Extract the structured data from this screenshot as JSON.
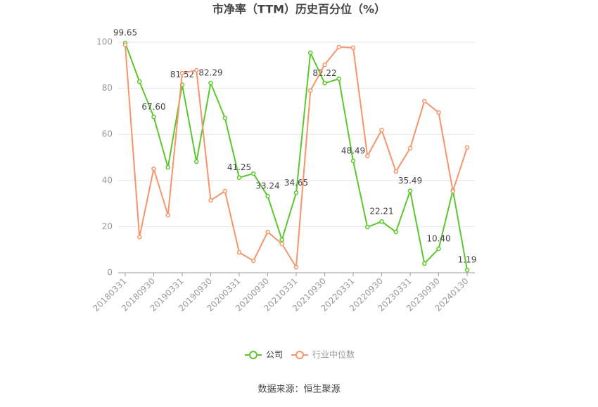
{
  "chart_data": {
    "type": "line",
    "title": "市净率（TTM）历史百分位（%）",
    "source": "数据来源：恒生聚源",
    "categories": [
      "20180331",
      null,
      "20180930",
      null,
      "20190331",
      null,
      "20190930",
      null,
      "20200331",
      null,
      "20200930",
      null,
      "20210331",
      null,
      "20210930",
      null,
      "20220331",
      null,
      "20220930",
      null,
      "20230331",
      null,
      "20230930",
      null,
      "20240130"
    ],
    "series": [
      {
        "name": "公司",
        "color": "#5cc72d",
        "values": [
          99.65,
          82.9,
          67.6,
          45.7,
          81.52,
          48.2,
          82.29,
          67.1,
          41.25,
          43.0,
          33.24,
          14.3,
          34.65,
          95.4,
          82.22,
          84.1,
          48.49,
          19.8,
          22.21,
          17.7,
          35.49,
          4.0,
          10.4,
          35.7,
          1.19
        ],
        "value_labels": [
          "99.65",
          null,
          "67.60",
          null,
          "81.52",
          null,
          "82.29",
          null,
          "41.25",
          null,
          "33.24",
          null,
          "34.65",
          null,
          "82.22",
          null,
          "48.49",
          null,
          "22.21",
          null,
          "35.49",
          null,
          "10.40",
          null,
          "1.19"
        ]
      },
      {
        "name": "行业中位数",
        "color": "#f5956b",
        "values": [
          98.8,
          15.5,
          45.1,
          25.0,
          86.6,
          87.8,
          31.4,
          35.4,
          8.8,
          5.2,
          17.7,
          12.5,
          2.4,
          79.0,
          90.2,
          97.9,
          97.6,
          50.6,
          61.9,
          43.9,
          54.0,
          74.4,
          69.5,
          35.4,
          54.3
        ]
      }
    ],
    "ylim": [
      0,
      100
    ],
    "yticks": [
      0,
      20,
      40,
      60,
      80,
      100
    ],
    "grid": true
  }
}
